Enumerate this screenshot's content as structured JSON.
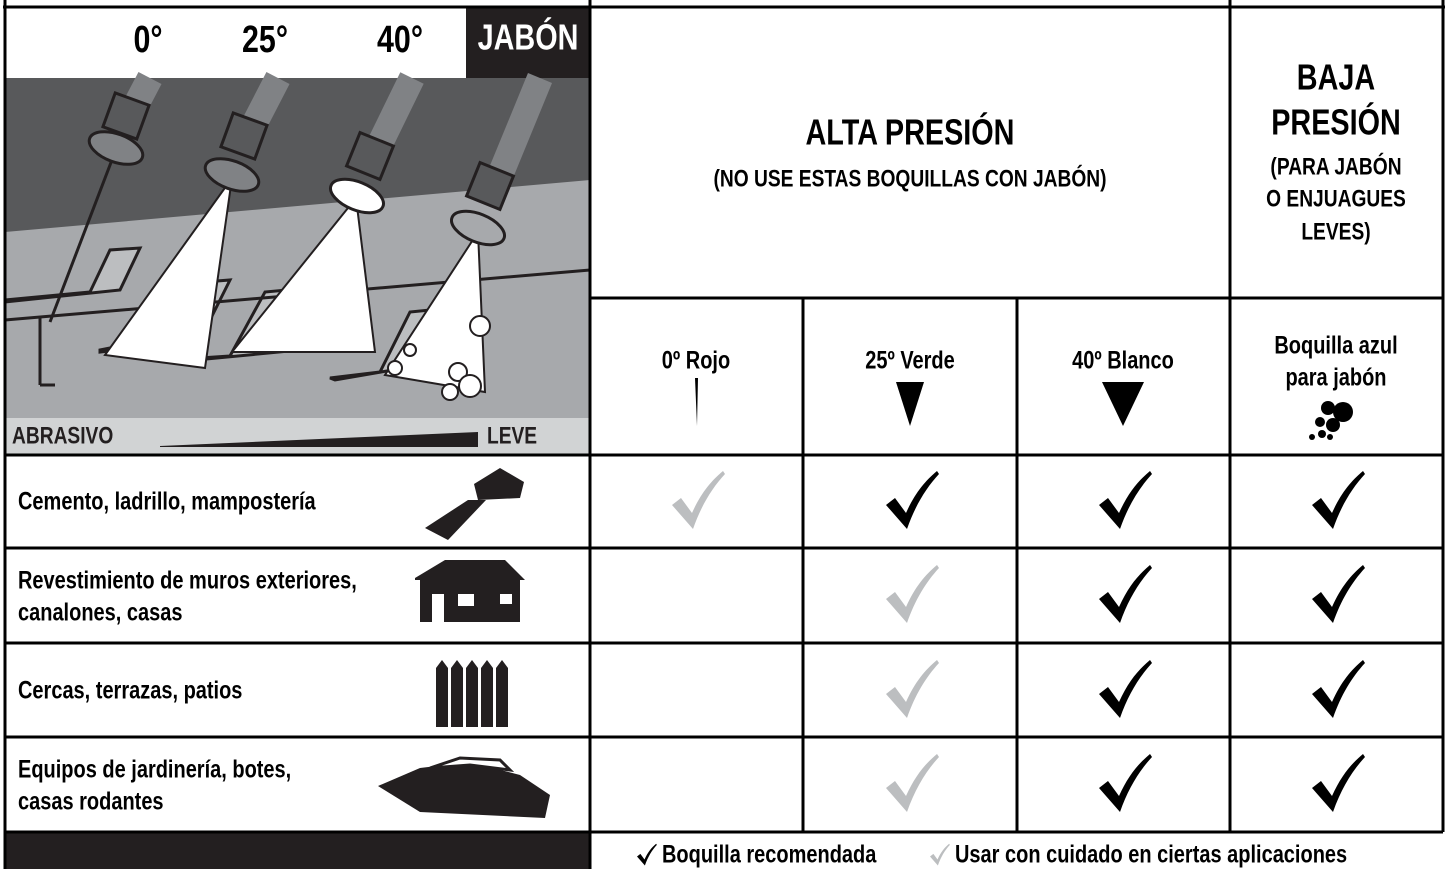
{
  "illustration": {
    "angles": [
      "0°",
      "25°",
      "40°"
    ],
    "soap_label": "JABÓN",
    "scale_left": "ABRASIVO",
    "scale_right": "LEVE"
  },
  "header": {
    "high_pressure": {
      "title": "ALTA PRESIÓN",
      "note": "(NO USE ESTAS BOQUILLAS CON JABÓN)"
    },
    "low_pressure": {
      "title_lines": [
        "BAJA",
        "PRESIÓN"
      ],
      "note_lines": [
        "(PARA JABÓN",
        "O ENJUAGUES",
        "LEVES)"
      ]
    }
  },
  "nozzles": [
    {
      "label_lines": [
        "0º Rojo"
      ]
    },
    {
      "label_lines": [
        "25º Verde"
      ]
    },
    {
      "label_lines": [
        "40º Blanco"
      ]
    },
    {
      "label_lines": [
        "Boquilla azul",
        "para jabón"
      ]
    }
  ],
  "rows": [
    {
      "label_lines": [
        "Cemento, ladrillo, mampostería"
      ]
    },
    {
      "label_lines": [
        "Revestimiento de muros exteriores,",
        "canalones, casas"
      ]
    },
    {
      "label_lines": [
        "Cercas, terrazas, patios"
      ]
    },
    {
      "label_lines": [
        "Equipos de jardinería, botes,",
        "casas rodantes"
      ]
    }
  ],
  "legend": {
    "recommended": "Boquilla recomendada",
    "caution": "Usar con cuidado en ciertas aplicaciones"
  }
}
